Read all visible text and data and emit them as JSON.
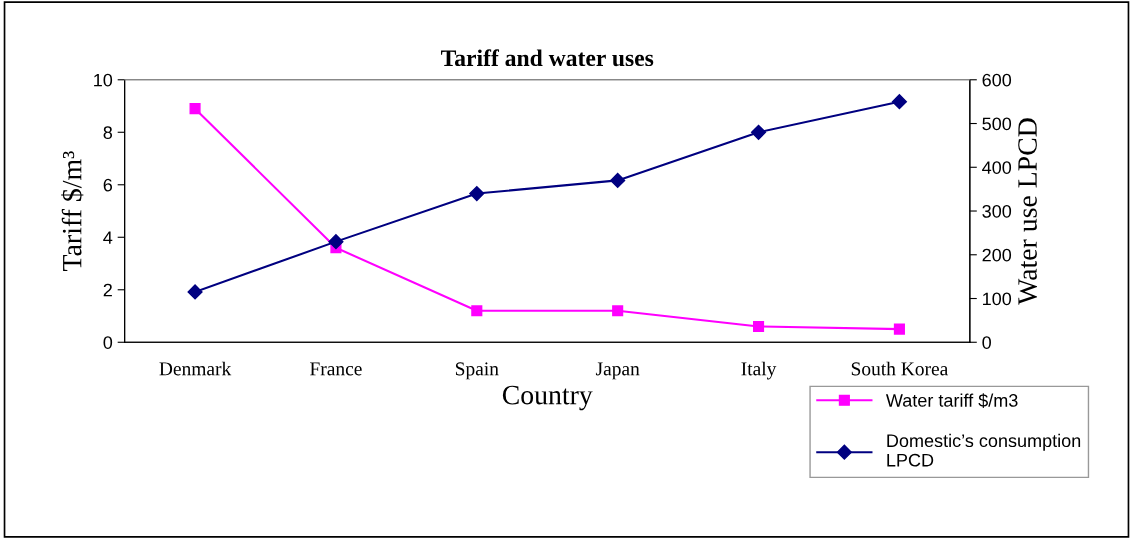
{
  "chart_data": {
    "type": "line",
    "title": "Tariff and water uses",
    "xlabel": "Country",
    "ylabel": "Tariff $/m³",
    "y2label": "Water use LPCD",
    "categories": [
      "Denmark",
      "France",
      "Spain",
      "Japan",
      "Italy",
      "South Korea"
    ],
    "series": [
      {
        "name": "Water tariff $/m3",
        "color": "#ff00ff",
        "marker": "square",
        "values": [
          8.9,
          3.6,
          1.2,
          1.2,
          0.6,
          0.5
        ]
      },
      {
        "name": "Domestic’s consumption LPCD",
        "color": "#000080",
        "marker": "diamond",
        "axis": "y2",
        "values": [
          115,
          230,
          340,
          370,
          480,
          550
        ]
      }
    ],
    "ylim": [
      0,
      10
    ],
    "yticks": [
      0,
      2,
      4,
      6,
      8,
      10
    ],
    "y2lim": [
      0,
      600
    ],
    "y2ticks": [
      0,
      100,
      200,
      300,
      400,
      500,
      600
    ],
    "grid": false,
    "legend": "bottom right",
    "line_style": "solid"
  }
}
